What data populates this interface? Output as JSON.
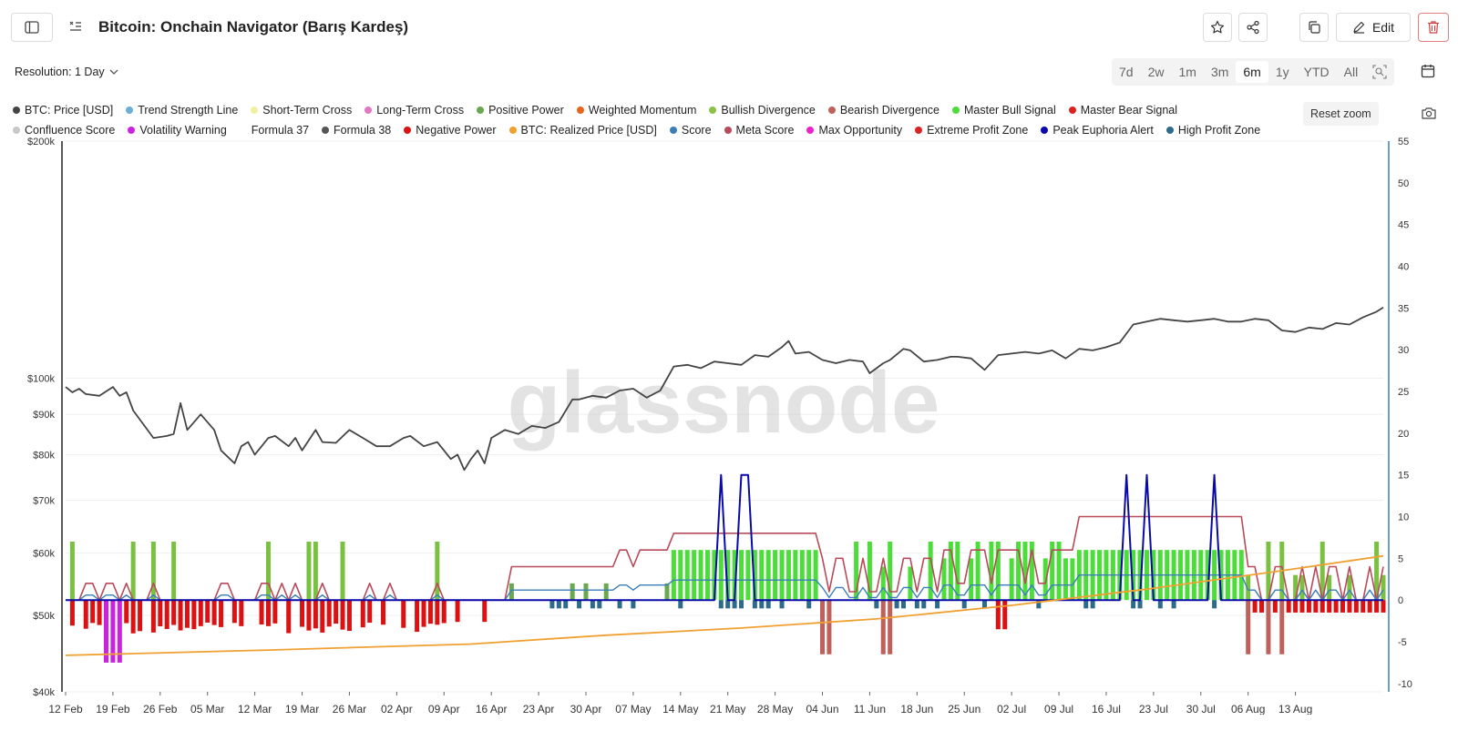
{
  "header": {
    "title": "Bitcoin: Onchain Navigator (Barış Kardeş)",
    "edit_label": "Edit",
    "resolution_label": "Resolution: 1 Day"
  },
  "time_ranges": [
    "7d",
    "2w",
    "1m",
    "3m",
    "6m",
    "1y",
    "YTD",
    "All"
  ],
  "active_range": "6m",
  "reset_zoom_label": "Reset zoom",
  "watermark": "glassnode",
  "legend": [
    {
      "label": "BTC: Price [USD]",
      "color": "#444444"
    },
    {
      "label": "Trend Strength Line",
      "color": "#6baed6"
    },
    {
      "label": "Short-Term Cross",
      "color": "#f0f0a0"
    },
    {
      "label": "Long-Term Cross",
      "color": "#e377c2"
    },
    {
      "label": "Positive Power",
      "color": "#6aa84f"
    },
    {
      "label": "Weighted Momentum",
      "color": "#e8641b"
    },
    {
      "label": "Bullish Divergence",
      "color": "#8bc34a"
    },
    {
      "label": "Bearish Divergence",
      "color": "#c0605a"
    },
    {
      "label": "Master Bull Signal",
      "color": "#4cdd3a"
    },
    {
      "label": "Master Bear Signal",
      "color": "#dd2222"
    },
    {
      "label": "Confluence Score",
      "color": "#c8c8c8"
    },
    {
      "label": "Volatility Warning",
      "color": "#cc22dd"
    },
    {
      "label": "Formula 37",
      "color": ""
    },
    {
      "label": "Formula 38",
      "color": "#555555"
    },
    {
      "label": "Negative Power",
      "color": "#dd1111"
    },
    {
      "label": "BTC: Realized Price [USD]",
      "color": "#f0a030"
    },
    {
      "label": "Score",
      "color": "#3a7fb8"
    },
    {
      "label": "Meta Score",
      "color": "#b84a5a"
    },
    {
      "label": "Max Opportunity",
      "color": "#ee22cc"
    },
    {
      "label": "Extreme Profit Zone",
      "color": "#dd2222"
    },
    {
      "label": "Peak Euphoria Alert",
      "color": "#0a0aaa"
    },
    {
      "label": "High Profit Zone",
      "color": "#2e6a8a"
    }
  ],
  "chart_data": {
    "type": "line",
    "y_left_ticks": [
      {
        "value": 40000,
        "label": "$40k"
      },
      {
        "value": 50000,
        "label": "$50k"
      },
      {
        "value": 60000,
        "label": "$60k"
      },
      {
        "value": 70000,
        "label": "$70k"
      },
      {
        "value": 80000,
        "label": "$80k"
      },
      {
        "value": 90000,
        "label": "$90k"
      },
      {
        "value": 100000,
        "label": "$100k"
      },
      {
        "value": 200000,
        "label": "$200k"
      }
    ],
    "y_left_scale": "log",
    "y_left_range": [
      40000,
      200000
    ],
    "y_right_ticks": [
      -10,
      -5,
      0,
      5,
      10,
      15,
      20,
      25,
      30,
      35,
      40,
      45,
      50,
      55
    ],
    "y_right_range": [
      -11,
      55
    ],
    "x_ticks": [
      "12 Feb",
      "19 Feb",
      "26 Feb",
      "05 Mar",
      "12 Mar",
      "19 Mar",
      "26 Mar",
      "02 Apr",
      "09 Apr",
      "16 Apr",
      "23 Apr",
      "30 Apr",
      "07 May",
      "14 May",
      "21 May",
      "28 May",
      "04 Jun",
      "11 Jun",
      "18 Jun",
      "25 Jun",
      "02 Jul",
      "09 Jul",
      "16 Jul",
      "23 Jul",
      "30 Jul",
      "06 Aug",
      "13 Aug"
    ],
    "series": [
      {
        "name": "BTC: Price [USD]",
        "color": "#444444",
        "points": [
          [
            0,
            97500
          ],
          [
            1,
            96000
          ],
          [
            2,
            97000
          ],
          [
            3,
            95500
          ],
          [
            5,
            95000
          ],
          [
            7,
            97500
          ],
          [
            8,
            95000
          ],
          [
            9,
            96000
          ],
          [
            10,
            91000
          ],
          [
            13,
            84000
          ],
          [
            15,
            84500
          ],
          [
            16,
            85000
          ],
          [
            17,
            93000
          ],
          [
            18,
            86000
          ],
          [
            20,
            90000
          ],
          [
            22,
            86000
          ],
          [
            23,
            81000
          ],
          [
            25,
            78000
          ],
          [
            26,
            82000
          ],
          [
            27,
            83000
          ],
          [
            28,
            80000
          ],
          [
            30,
            84000
          ],
          [
            31,
            84500
          ],
          [
            33,
            82000
          ],
          [
            34,
            84000
          ],
          [
            35,
            81000
          ],
          [
            37,
            86000
          ],
          [
            38,
            83000
          ],
          [
            40,
            82800
          ],
          [
            42,
            86000
          ],
          [
            44,
            84000
          ],
          [
            46,
            82000
          ],
          [
            48,
            82000
          ],
          [
            50,
            84000
          ],
          [
            51,
            84500
          ],
          [
            53,
            82000
          ],
          [
            55,
            83000
          ],
          [
            57,
            79000
          ],
          [
            58,
            80000
          ],
          [
            59,
            76500
          ],
          [
            60,
            79000
          ],
          [
            61,
            81000
          ],
          [
            62,
            78000
          ],
          [
            63,
            84000
          ],
          [
            65,
            86000
          ],
          [
            67,
            85000
          ],
          [
            69,
            87000
          ],
          [
            71,
            86500
          ],
          [
            73,
            88000
          ],
          [
            75,
            94000
          ],
          [
            76,
            94000
          ],
          [
            78,
            95000
          ],
          [
            80,
            94500
          ],
          [
            82,
            96500
          ],
          [
            84,
            97000
          ],
          [
            86,
            94500
          ],
          [
            88,
            96500
          ],
          [
            90,
            103500
          ],
          [
            92,
            104000
          ],
          [
            94,
            103000
          ],
          [
            96,
            105000
          ],
          [
            98,
            104500
          ],
          [
            100,
            104000
          ],
          [
            102,
            107000
          ],
          [
            104,
            106500
          ],
          [
            106,
            109500
          ],
          [
            107,
            111500
          ],
          [
            108,
            107500
          ],
          [
            110,
            108000
          ],
          [
            112,
            105500
          ],
          [
            114,
            104500
          ],
          [
            116,
            105500
          ],
          [
            118,
            105000
          ],
          [
            119,
            101500
          ],
          [
            121,
            104500
          ],
          [
            122,
            105500
          ],
          [
            124,
            109000
          ],
          [
            125,
            108500
          ],
          [
            127,
            105000
          ],
          [
            129,
            105500
          ],
          [
            131,
            106500
          ],
          [
            132,
            106500
          ],
          [
            134,
            106000
          ],
          [
            136,
            102500
          ],
          [
            138,
            107000
          ],
          [
            140,
            107500
          ],
          [
            142,
            108000
          ],
          [
            144,
            107500
          ],
          [
            146,
            108500
          ],
          [
            148,
            106000
          ],
          [
            150,
            109000
          ],
          [
            152,
            108500
          ],
          [
            154,
            109500
          ],
          [
            156,
            111000
          ],
          [
            158,
            117000
          ],
          [
            160,
            118000
          ],
          [
            162,
            119000
          ],
          [
            164,
            118500
          ],
          [
            166,
            118000
          ],
          [
            168,
            118500
          ],
          [
            170,
            119000
          ],
          [
            172,
            118000
          ],
          [
            174,
            118000
          ],
          [
            176,
            119000
          ],
          [
            178,
            118500
          ],
          [
            180,
            115000
          ],
          [
            182,
            114500
          ],
          [
            184,
            116000
          ],
          [
            186,
            115500
          ],
          [
            188,
            117500
          ],
          [
            190,
            117000
          ],
          [
            192,
            119500
          ],
          [
            194,
            121500
          ],
          [
            195,
            123000
          ]
        ]
      },
      {
        "name": "BTC: Realized Price [USD]",
        "color": "#f0a030",
        "points": [
          [
            0,
            44500
          ],
          [
            30,
            45200
          ],
          [
            60,
            46000
          ],
          [
            80,
            47200
          ],
          [
            100,
            48200
          ],
          [
            120,
            49500
          ],
          [
            140,
            51500
          ],
          [
            160,
            54000
          ],
          [
            180,
            57000
          ],
          [
            195,
            59500
          ]
        ]
      }
    ]
  }
}
